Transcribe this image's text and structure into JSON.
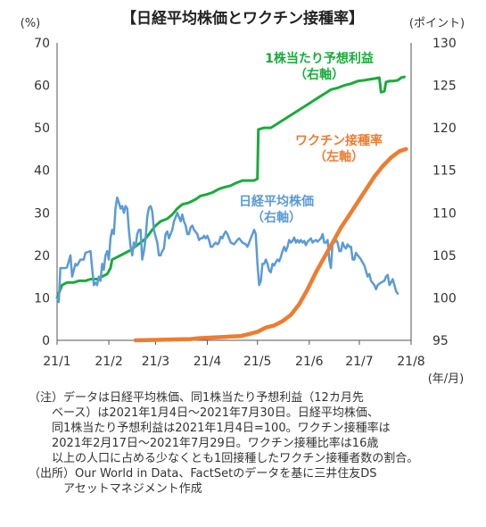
{
  "chart_data": {
    "type": "line",
    "title": "【日経平均株価とワクチン接種率】",
    "left_unit": "(%)",
    "right_unit": "(ポイント)",
    "x_unit": "(年/月)",
    "x_ticks": [
      "21/1",
      "21/2",
      "21/3",
      "21/4",
      "21/5",
      "21/6",
      "21/7",
      "21/8"
    ],
    "left_axis": {
      "ticks": [
        0,
        10,
        20,
        30,
        40,
        50,
        60,
        70
      ],
      "range": [
        0,
        70
      ]
    },
    "right_axis": {
      "ticks": [
        95,
        100,
        105,
        110,
        115,
        120,
        125,
        130
      ],
      "range": [
        95,
        130
      ]
    },
    "colors": {
      "eps": "#1aab3c",
      "nikkei": "#5b9bd5",
      "vaccine": "#ed7d31"
    },
    "series": [
      {
        "key": "eps",
        "label_lines": [
          "1株当たり予想利益",
          "（右軸）"
        ],
        "axis": "right",
        "points": [
          [
            0,
            100
          ],
          [
            3,
            101.5
          ],
          [
            6,
            101.8
          ],
          [
            10,
            101.8
          ],
          [
            13,
            102
          ],
          [
            17,
            102
          ],
          [
            20,
            102.2
          ],
          [
            24,
            102.2
          ],
          [
            27,
            102.5
          ],
          [
            30,
            102.8
          ],
          [
            32,
            103.5
          ],
          [
            33,
            104.5
          ],
          [
            36,
            104.8
          ],
          [
            40,
            105.2
          ],
          [
            44,
            105.6
          ],
          [
            48,
            106.2
          ],
          [
            52,
            106.8
          ],
          [
            54,
            107.2
          ],
          [
            57,
            108
          ],
          [
            59,
            108.5
          ],
          [
            62,
            109
          ],
          [
            66,
            109.3
          ],
          [
            69,
            109.8
          ],
          [
            72,
            110.5
          ],
          [
            75,
            111
          ],
          [
            79,
            111.2
          ],
          [
            83,
            111.6
          ],
          [
            86,
            112
          ],
          [
            90,
            112.2
          ],
          [
            93,
            112.4
          ],
          [
            97,
            112.8
          ],
          [
            100,
            113
          ],
          [
            104,
            113.2
          ],
          [
            107,
            113.5
          ],
          [
            111,
            113.8
          ],
          [
            114,
            113.8
          ],
          [
            118,
            113.8
          ],
          [
            120,
            114
          ],
          [
            120.5,
            119.8
          ],
          [
            124,
            120
          ],
          [
            128,
            120
          ],
          [
            132,
            120.5
          ],
          [
            136,
            121
          ],
          [
            140,
            121.5
          ],
          [
            144,
            122
          ],
          [
            148,
            122.5
          ],
          [
            152,
            123
          ],
          [
            156,
            123.5
          ],
          [
            160,
            124
          ],
          [
            164,
            124.5
          ],
          [
            168,
            124.7
          ],
          [
            172,
            125
          ],
          [
            176,
            125.2
          ],
          [
            180,
            125.5
          ],
          [
            184,
            125.6
          ],
          [
            187,
            125.7
          ],
          [
            190,
            125.8
          ],
          [
            193,
            125.9
          ],
          [
            194,
            124.2
          ],
          [
            196,
            124.3
          ],
          [
            197,
            125.4
          ],
          [
            199,
            125.5
          ],
          [
            201,
            125.5
          ],
          [
            204,
            125.6
          ],
          [
            206,
            125.9
          ],
          [
            208,
            126
          ]
        ]
      },
      {
        "key": "nikkei",
        "label_lines": [
          "日経平均株価",
          "（右軸）"
        ],
        "axis": "right",
        "points": [
          [
            0,
            100
          ],
          [
            1,
            99.5
          ],
          [
            2,
            103.5
          ],
          [
            5,
            103.5
          ],
          [
            6,
            103.6
          ],
          [
            8,
            105
          ],
          [
            9,
            102.5
          ],
          [
            11,
            104
          ],
          [
            12,
            103.8
          ],
          [
            14,
            104.5
          ],
          [
            16,
            104.5
          ],
          [
            17,
            105.3
          ],
          [
            20,
            105.5
          ],
          [
            21,
            103.5
          ],
          [
            22,
            101.5
          ],
          [
            23,
            101.8
          ],
          [
            24,
            101.5
          ],
          [
            25,
            102.5
          ],
          [
            26,
            102
          ],
          [
            27,
            104
          ],
          [
            28,
            103.3
          ],
          [
            29,
            105
          ],
          [
            30,
            105.5
          ],
          [
            31,
            104.5
          ],
          [
            32,
            107
          ],
          [
            33,
            108
          ],
          [
            34,
            107.5
          ],
          [
            35,
            110.5
          ],
          [
            36,
            111.8
          ],
          [
            37,
            111.2
          ],
          [
            38,
            110.5
          ],
          [
            39,
            110.8
          ],
          [
            40,
            110
          ],
          [
            41,
            110.8
          ],
          [
            42,
            110.5
          ],
          [
            43,
            108
          ],
          [
            44,
            106
          ],
          [
            45,
            105
          ],
          [
            46,
            106.5
          ],
          [
            47,
            106
          ],
          [
            48,
            107.5
          ],
          [
            49,
            108
          ],
          [
            50,
            108
          ],
          [
            51,
            104.5
          ],
          [
            52,
            105.5
          ],
          [
            53,
            107
          ],
          [
            54,
            109.5
          ],
          [
            55,
            110.6
          ],
          [
            56,
            110.8
          ],
          [
            57,
            110.2
          ],
          [
            58,
            108
          ],
          [
            59,
            107.2
          ],
          [
            60,
            106.5
          ],
          [
            61,
            105
          ],
          [
            62,
            105
          ],
          [
            63,
            105.5
          ],
          [
            64,
            105.8
          ],
          [
            65,
            107.5
          ],
          [
            66,
            107.8
          ],
          [
            67,
            107
          ],
          [
            68,
            107.5
          ],
          [
            69,
            108
          ],
          [
            70,
            109
          ],
          [
            71,
            109.5
          ],
          [
            72,
            110
          ],
          [
            73,
            109.5
          ],
          [
            74,
            109
          ],
          [
            75,
            109.8
          ],
          [
            76,
            109
          ],
          [
            77,
            108.5
          ],
          [
            78,
            107.5
          ],
          [
            79,
            107.5
          ],
          [
            80,
            108.3
          ],
          [
            81,
            108.5
          ],
          [
            82,
            108
          ],
          [
            84,
            107.5
          ],
          [
            85,
            106.8
          ],
          [
            86,
            107
          ],
          [
            87,
            107
          ],
          [
            88,
            107.3
          ],
          [
            89,
            107
          ],
          [
            90,
            107.3
          ],
          [
            91,
            106.8
          ],
          [
            92,
            106
          ],
          [
            93,
            106
          ],
          [
            94,
            106.3
          ],
          [
            95,
            106.5
          ],
          [
            96,
            106.3
          ],
          [
            97,
            106.5
          ],
          [
            98,
            107.2
          ],
          [
            99,
            107
          ],
          [
            100,
            107.5
          ],
          [
            101,
            107.8
          ],
          [
            102,
            107.5
          ],
          [
            104,
            106.5
          ],
          [
            106,
            106.3
          ],
          [
            108,
            106.8
          ],
          [
            109,
            107
          ],
          [
            111,
            106.5
          ],
          [
            113,
            106.3
          ],
          [
            114,
            106
          ],
          [
            115,
            106.5
          ],
          [
            116,
            107
          ],
          [
            117,
            107.5
          ],
          [
            118,
            108
          ],
          [
            119,
            107.5
          ],
          [
            120,
            104
          ],
          [
            121,
            101.5
          ],
          [
            122,
            102
          ],
          [
            123,
            104
          ],
          [
            124,
            104
          ],
          [
            125,
            104.5
          ],
          [
            126,
            104
          ],
          [
            127,
            103.2
          ],
          [
            128,
            103
          ],
          [
            129,
            104
          ],
          [
            130,
            103.8
          ],
          [
            131,
            104.2
          ],
          [
            132,
            104.5
          ],
          [
            133,
            104.3
          ],
          [
            134,
            104.8
          ],
          [
            135,
            105.5
          ],
          [
            136,
            106
          ],
          [
            137,
            105.5
          ],
          [
            138,
            106
          ],
          [
            139,
            106.8
          ],
          [
            140,
            106.5
          ],
          [
            141,
            106.7
          ],
          [
            142,
            107.1
          ],
          [
            143,
            106.5
          ],
          [
            144,
            106.8
          ],
          [
            145,
            106.5
          ],
          [
            146,
            106.8
          ],
          [
            147,
            106.5
          ],
          [
            148,
            106.7
          ],
          [
            149,
            106.2
          ],
          [
            150,
            106.6
          ],
          [
            151,
            106.8
          ],
          [
            152,
            107
          ],
          [
            153,
            106.5
          ],
          [
            154,
            106.7
          ],
          [
            155,
            106.8
          ],
          [
            156,
            106.6
          ],
          [
            157,
            106.8
          ],
          [
            158,
            107
          ],
          [
            159,
            107.5
          ],
          [
            160,
            106.5
          ],
          [
            161,
            106.5
          ],
          [
            162,
            106.8
          ],
          [
            163,
            104.5
          ],
          [
            164,
            103.5
          ],
          [
            165,
            106.5
          ],
          [
            166,
            106.5
          ],
          [
            167,
            106.8
          ],
          [
            168,
            106.5
          ],
          [
            169,
            105.5
          ],
          [
            170,
            105.5
          ],
          [
            171,
            106.5
          ],
          [
            172,
            106
          ],
          [
            173,
            105.8
          ],
          [
            174,
            106.3
          ],
          [
            175,
            106
          ],
          [
            176,
            106
          ],
          [
            177,
            104.5
          ],
          [
            178,
            104.5
          ],
          [
            179,
            105.3
          ],
          [
            180,
            105
          ],
          [
            181,
            104.8
          ],
          [
            182,
            104.5
          ],
          [
            184,
            103.8
          ],
          [
            186,
            102.5
          ],
          [
            187,
            102.8
          ],
          [
            188,
            102
          ],
          [
            190,
            101.5
          ],
          [
            191,
            101
          ],
          [
            192,
            101.5
          ],
          [
            194,
            101.8
          ],
          [
            196,
            102
          ],
          [
            197,
            102.5
          ],
          [
            198,
            102.7
          ],
          [
            199,
            101.5
          ],
          [
            200,
            101.8
          ],
          [
            201,
            102.2
          ],
          [
            202,
            101.5
          ],
          [
            203,
            100.8
          ],
          [
            204,
            100.5
          ]
        ]
      },
      {
        "key": "vaccine",
        "label_lines": [
          "ワクチン接種率",
          "（左軸）"
        ],
        "axis": "left",
        "points": [
          [
            47,
            0
          ],
          [
            60,
            0.1
          ],
          [
            70,
            0.2
          ],
          [
            80,
            0.3
          ],
          [
            85,
            0.5
          ],
          [
            90,
            0.6
          ],
          [
            100,
            0.8
          ],
          [
            110,
            1.0
          ],
          [
            115,
            1.5
          ],
          [
            120,
            2.0
          ],
          [
            125,
            3.0
          ],
          [
            130,
            3.5
          ],
          [
            135,
            4.5
          ],
          [
            140,
            6
          ],
          [
            145,
            8.5
          ],
          [
            150,
            12
          ],
          [
            155,
            16
          ],
          [
            160,
            19.5
          ],
          [
            165,
            23
          ],
          [
            170,
            26.5
          ],
          [
            175,
            29.5
          ],
          [
            180,
            32.5
          ],
          [
            185,
            35.5
          ],
          [
            190,
            38.5
          ],
          [
            195,
            41
          ],
          [
            200,
            43
          ],
          [
            205,
            44.5
          ],
          [
            209,
            45
          ]
        ]
      }
    ]
  },
  "notes": [
    "（注）データは日経平均株価、同1株当たり予想利益（12カ月先",
    "　　ベース）は2021年1月4日～2021年7月30日。日経平均株価、",
    "　　同1株当たり予想利益は2021年1月4日=100。ワクチン接種率は",
    "　　2021年2月17日～2021年7月29日。ワクチン接種比率は16歳",
    "　　以上の人口に占める少なくとも1回接種したワクチン接種者数の割合。",
    "（出所）Our World in Data、FactSetのデータを基に三井住友DS",
    "　　　アセットマネジメント作成"
  ]
}
